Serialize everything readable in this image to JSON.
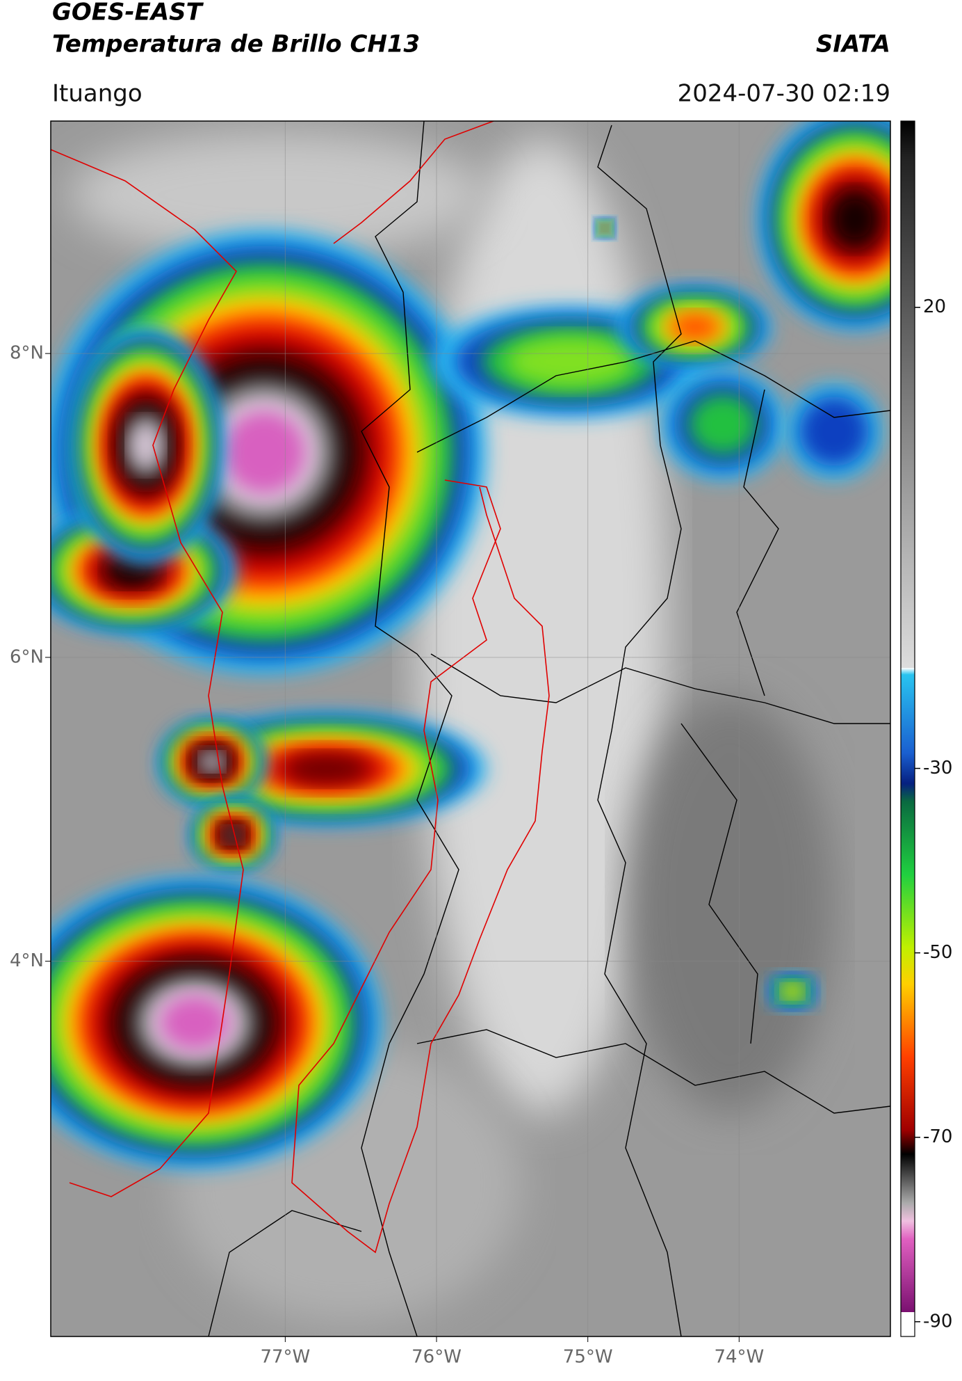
{
  "header": {
    "title": "GOES-EAST",
    "subtitle": "Temperatura de Brillo CH13",
    "brand": "SIATA",
    "location": "Ituango",
    "datetime": "2024-07-30 02:19"
  },
  "map": {
    "xlim": [
      -78.55,
      -73.0
    ],
    "ylim": [
      1.53,
      9.53
    ],
    "xticks": [
      {
        "value": -77,
        "label": "77°W"
      },
      {
        "value": -76,
        "label": "76°W"
      },
      {
        "value": -75,
        "label": "75°W"
      },
      {
        "value": -74,
        "label": "74°W"
      }
    ],
    "yticks": [
      {
        "value": 8,
        "label": "8°N"
      },
      {
        "value": 6,
        "label": "6°N"
      },
      {
        "value": 4,
        "label": "4°N"
      }
    ],
    "grid": true
  },
  "colorbar": {
    "lim": [
      -91.6,
      40.2
    ],
    "ticks": [
      20,
      -30,
      -50,
      -70,
      -90
    ]
  }
}
